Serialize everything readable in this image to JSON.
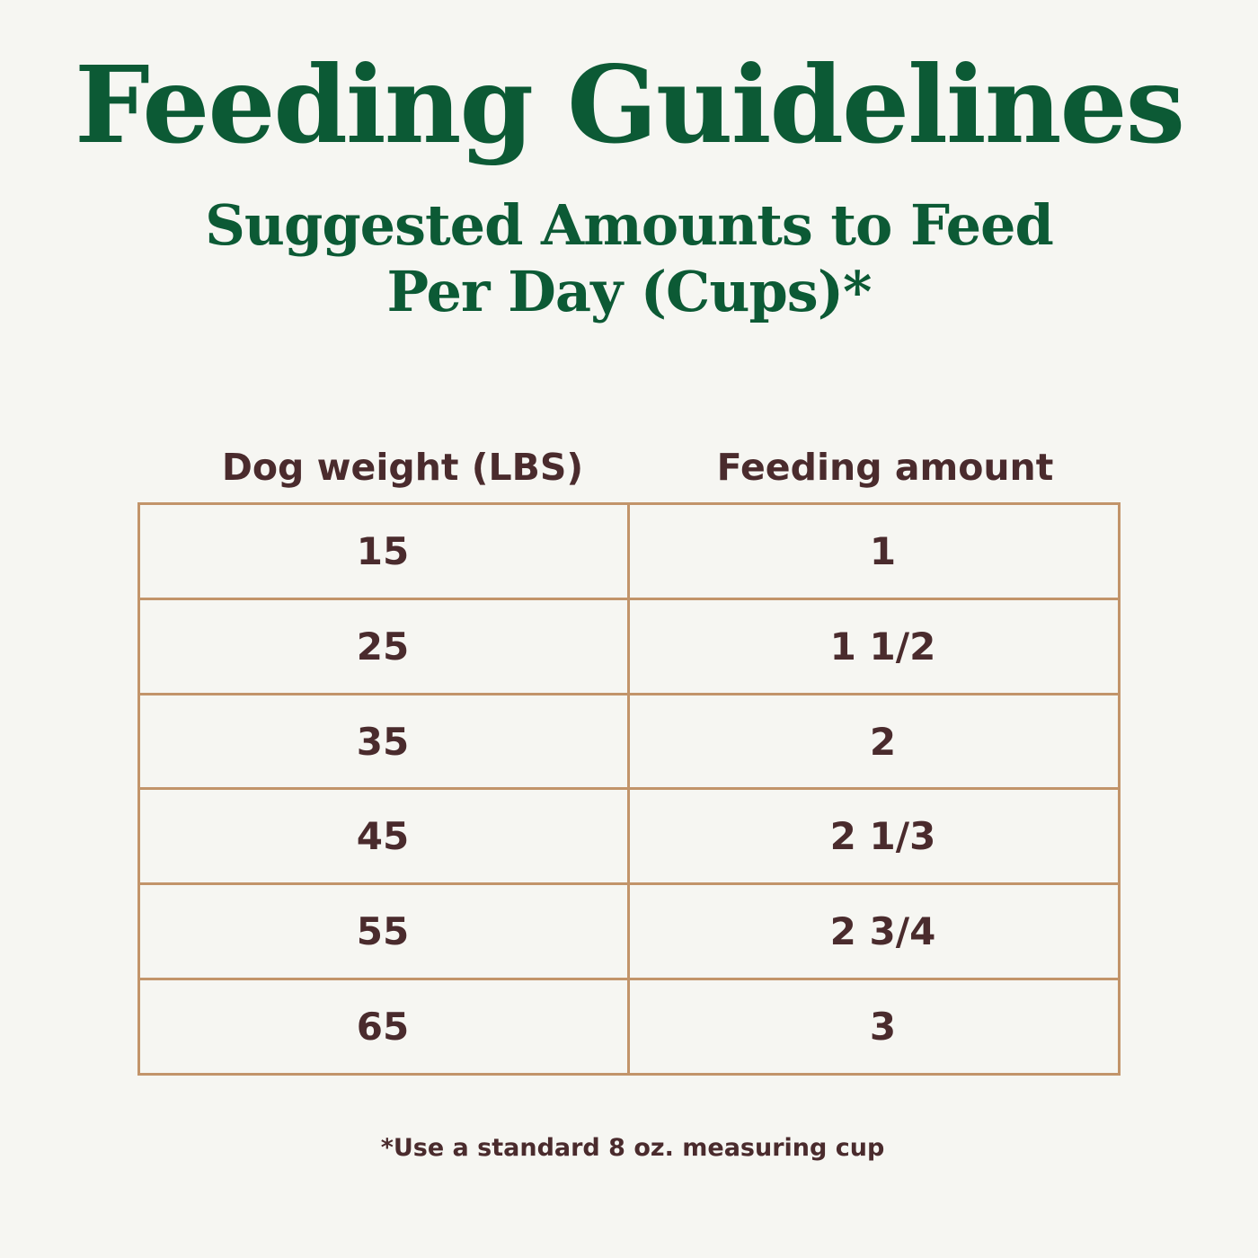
{
  "header": {
    "title": "Feeding Guidelines",
    "subtitle_line1": "Suggested Amounts to Feed",
    "subtitle_line2": "Per Day (Cups)*"
  },
  "table": {
    "columns": [
      "Dog weight (LBS)",
      "Feeding amount"
    ],
    "rows": [
      {
        "weight": "15",
        "amount": "1"
      },
      {
        "weight": "25",
        "amount": "1 1/2"
      },
      {
        "weight": "35",
        "amount": "2"
      },
      {
        "weight": "45",
        "amount": "2 1/3"
      },
      {
        "weight": "55",
        "amount": "2 3/4"
      },
      {
        "weight": "65",
        "amount": "3"
      }
    ]
  },
  "footnote": "*Use a standard 8 oz. measuring cup",
  "colors": {
    "background": "#f6f6f2",
    "heading": "#0c5a35",
    "text": "#4a2b2d",
    "border": "#c2946a"
  }
}
